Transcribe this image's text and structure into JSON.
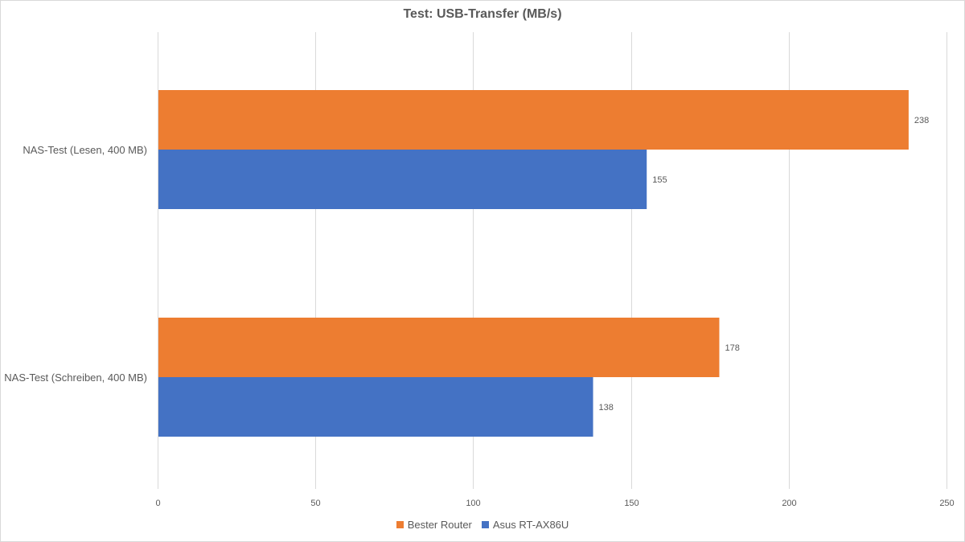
{
  "chart_data": {
    "type": "bar",
    "orientation": "horizontal",
    "title": "Test: USB-Transfer (MB/s)",
    "xlabel": "",
    "ylabel": "",
    "xlim": [
      0,
      250
    ],
    "x_ticks": [
      0,
      50,
      100,
      150,
      200,
      250
    ],
    "grid": true,
    "legend_position": "bottom",
    "categories": [
      "NAS-Test (Lesen, 400 MB)",
      "NAS-Test (Schreiben, 400 MB)"
    ],
    "series": [
      {
        "name": "Bester Router",
        "color": "#ED7D31",
        "values": [
          238,
          178
        ]
      },
      {
        "name": "Asus RT-AX86U",
        "color": "#4472C4",
        "values": [
          155,
          138
        ]
      }
    ]
  }
}
